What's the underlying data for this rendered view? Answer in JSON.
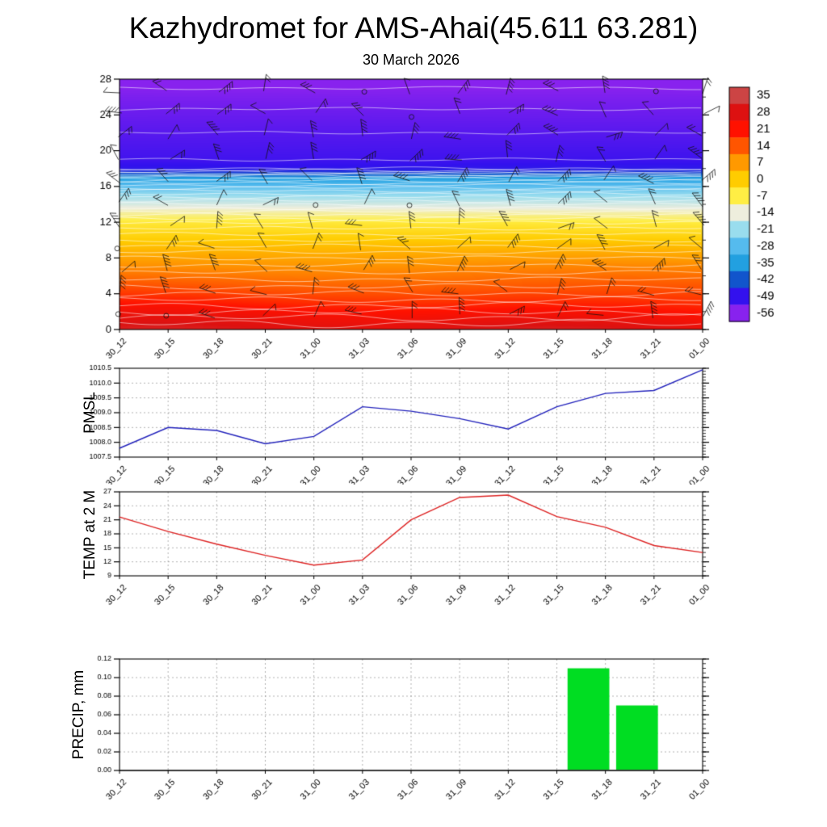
{
  "title": "Kazhydromet for AMS-Ahai(45.611 63.281)",
  "subtitle": "30 March 2026",
  "time_labels": [
    "30_12",
    "30_15",
    "30_18",
    "30_21",
    "31_00",
    "31_03",
    "31_06",
    "31_09",
    "31_12",
    "31_15",
    "31_18",
    "31_21",
    "01_00"
  ],
  "chart_data": [
    {
      "id": "upper_air_cross_section",
      "type": "heatmap",
      "title": "30 March 2026",
      "x": [
        "30_12",
        "30_15",
        "30_18",
        "30_21",
        "31_00",
        "31_03",
        "31_06",
        "31_09",
        "31_12",
        "31_15",
        "31_18",
        "31_21",
        "01_00"
      ],
      "ylim": [
        0,
        28
      ],
      "yticks": [
        0,
        4,
        8,
        12,
        16,
        20,
        24,
        28
      ],
      "ytick_labels": [
        "0",
        "4",
        "8",
        "12",
        "16",
        "20",
        "24",
        "28"
      ],
      "overlay": "wind-barbs",
      "contour_lines": "white, every 2 degrees",
      "colorbar": {
        "values": [
          35,
          28,
          21,
          14,
          7,
          0,
          -7,
          -14,
          -21,
          -28,
          -35,
          -42,
          -49,
          -56
        ],
        "colors": [
          "#cc4444",
          "#dd1111",
          "#ff1100",
          "#ff5500",
          "#ff9900",
          "#ffcc00",
          "#ffee44",
          "#eeeedd",
          "#99ddee",
          "#55bbee",
          "#22a0e0",
          "#1155cc",
          "#3311ee",
          "#8822ee"
        ]
      },
      "temperature_profile": {
        "height": [
          0,
          4,
          8,
          10,
          12,
          13,
          14,
          15,
          16,
          17,
          17.6,
          18,
          19,
          22,
          26,
          28
        ],
        "temp_c": [
          28,
          16,
          6,
          0,
          -6,
          -11,
          -16,
          -21,
          -27,
          -35,
          -44,
          -48,
          -50,
          -52,
          -55,
          -57
        ]
      }
    },
    {
      "id": "pmsl",
      "type": "line",
      "ylabel": "PMSL",
      "line_color": "#2222bb",
      "x": [
        "30_12",
        "30_15",
        "30_18",
        "30_21",
        "31_00",
        "31_03",
        "31_06",
        "31_09",
        "31_12",
        "31_15",
        "31_18",
        "31_21",
        "01_00"
      ],
      "values": [
        1007.8,
        1008.5,
        1008.4,
        1007.95,
        1008.2,
        1009.2,
        1009.05,
        1008.8,
        1008.45,
        1009.2,
        1009.65,
        1009.75,
        1010.45
      ],
      "ylim": [
        1007.5,
        1010.5
      ],
      "yticks": [
        1007.5,
        1008.0,
        1008.5,
        1009.0,
        1009.5,
        1010.0,
        1010.5
      ],
      "ytick_labels": [
        "1007.5",
        "1008.0",
        "1008.5",
        "1009.0",
        "1009.5",
        "1010.0",
        "1010.5"
      ]
    },
    {
      "id": "temp_2m",
      "type": "line",
      "ylabel": "TEMP at 2 M",
      "line_color": "#dd2222",
      "x": [
        "30_12",
        "30_15",
        "30_18",
        "30_21",
        "31_00",
        "31_03",
        "31_06",
        "31_09",
        "31_12",
        "31_15",
        "31_18",
        "31_21",
        "01_00"
      ],
      "values": [
        21.6,
        18.5,
        15.8,
        13.4,
        11.3,
        12.4,
        21.0,
        25.8,
        26.3,
        21.7,
        19.4,
        15.5,
        14.0
      ],
      "ylim": [
        9,
        27
      ],
      "yticks": [
        9,
        12,
        15,
        18,
        21,
        24,
        27
      ],
      "ytick_labels": [
        "9",
        "12",
        "15",
        "18",
        "21",
        "24",
        "27"
      ]
    },
    {
      "id": "precip",
      "type": "bar",
      "ylabel": "PRECIP, mm",
      "bar_color": "#00dd22",
      "x": [
        "30_12",
        "30_15",
        "30_18",
        "30_21",
        "31_00",
        "31_03",
        "31_06",
        "31_09",
        "31_12",
        "31_15",
        "31_18",
        "31_21",
        "01_00"
      ],
      "values": [
        0,
        0,
        0,
        0,
        0,
        0,
        0,
        0,
        0,
        0,
        0.11,
        0.07,
        0
      ],
      "ylim": [
        0,
        0.12
      ],
      "yticks": [
        0,
        0.02,
        0.04,
        0.06,
        0.08,
        0.1,
        0.12
      ],
      "ytick_labels": [
        "0.00",
        "0.02",
        "0.04",
        "0.06",
        "0.08",
        "0.10",
        "0.12"
      ]
    }
  ]
}
